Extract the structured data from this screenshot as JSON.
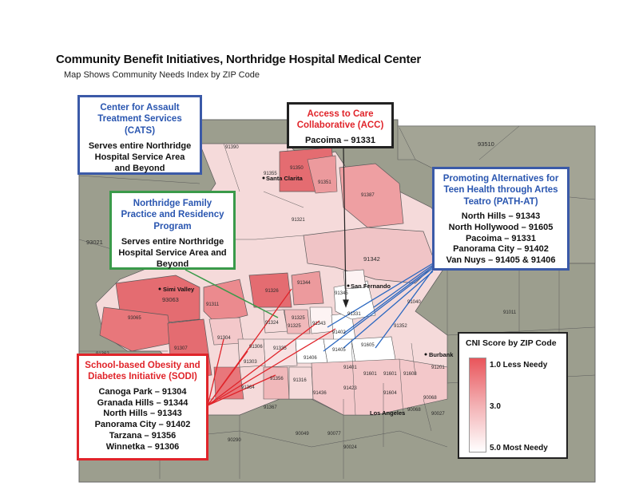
{
  "header": {
    "title": "Community Benefit Initiatives, Northridge Hospital Medical Center",
    "subtitle": "Map Shows Community Needs Index by ZIP Code"
  },
  "programs": {
    "cats": {
      "title_lines": [
        "Center for Assault",
        "Treatment Services",
        "(CATS)"
      ],
      "body_lines": [
        "Serves entire Northridge",
        "Hospital Service Area",
        "and Beyond"
      ]
    },
    "acc": {
      "title_lines": [
        "Access to Care",
        "Collaborative (ACC)"
      ],
      "body_lines": [
        "Pacoima – 91331"
      ]
    },
    "nfp": {
      "title_lines": [
        "Northridge Family",
        "Practice and Residency",
        "Program"
      ],
      "body_lines": [
        "Serves entire Northridge",
        "Hospital Service Area and",
        "Beyond"
      ]
    },
    "path": {
      "title_lines": [
        "Promoting Alternatives for",
        "Teen Health through Artes",
        "Teatro (PATH-AT)"
      ],
      "body_lines": [
        "North Hills – 91343",
        "North Hollywood – 91605",
        "Pacoima – 91331",
        "Panorama City – 91402",
        "Van Nuys – 91405 & 91406"
      ]
    },
    "sodi": {
      "title_lines": [
        "School-based Obesity and",
        "Diabetes Initiative (SODI)"
      ],
      "body_lines": [
        "Canoga Park – 91304",
        "Granada Hills – 91344",
        "North Hills – 91343",
        "Panorama City – 91402",
        "Tarzana – 91356",
        "Winnetka – 91306"
      ]
    }
  },
  "legend": {
    "title": "CNI Score by ZIP Code",
    "high": "1.0 Less Needy",
    "mid": "3.0",
    "low": "5.0 Most Needy",
    "colors": {
      "less_needy": "#e9555b",
      "most_needy": "#ffffff"
    }
  },
  "map": {
    "cities": [
      "Santa Clarita",
      "San Fernando",
      "Simi Valley",
      "Burbank",
      "Los Angeles"
    ],
    "zip_labels": [
      "93510",
      "91390",
      "91355",
      "91350",
      "91351",
      "91321",
      "91387",
      "91342",
      "91381",
      "93021",
      "93063",
      "91311",
      "91326",
      "91344",
      "91345",
      "91340",
      "91040",
      "91011",
      "93065",
      "91307",
      "91304",
      "91306",
      "91335",
      "91343",
      "91402",
      "91406",
      "91405",
      "91605",
      "91331",
      "91324",
      "91325",
      "91352",
      "91362",
      "91364",
      "91356",
      "91316",
      "91436",
      "91423",
      "91401",
      "91601",
      "91601",
      "91604",
      "91608",
      "91201",
      "91214",
      "91214",
      "90290",
      "90265",
      "90049",
      "90077",
      "90024",
      "90068",
      "90027",
      "90068",
      "91301",
      "91302",
      "91303",
      "91367",
      "91325"
    ],
    "colors": {
      "outside": "#9c9e8e",
      "area_pale": "#f5dada",
      "area_mid": "#f0b8ba",
      "area_dark": "#e46c71",
      "boundary": "#5a5a5a"
    }
  }
}
